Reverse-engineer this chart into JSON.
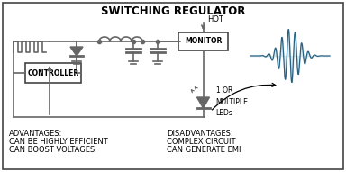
{
  "title": "SWITCHING REGULATOR",
  "title_fontsize": 8.5,
  "bg_color": "#ffffff",
  "line_color": "#666666",
  "wave_color_light": "#7ab8d4",
  "wave_color_dark": "#2a6080",
  "advantages_title": "ADVANTAGES:",
  "advantages_lines": [
    "CAN BE HIGHLY EFFICIENT",
    "CAN BOOST VOLTAGES"
  ],
  "disadvantages_title": "DISADVANTAGES:",
  "disadvantages_lines": [
    "COMPLEX CIRCUIT",
    "CAN GENERATE EMI"
  ],
  "text_fontsize": 6.0,
  "monitor_label": "MONITOR",
  "controller_label": "CONTROLLER",
  "hot_label": "HOT",
  "led_label": "1 OR\nMULTIPLE\nLEDs"
}
